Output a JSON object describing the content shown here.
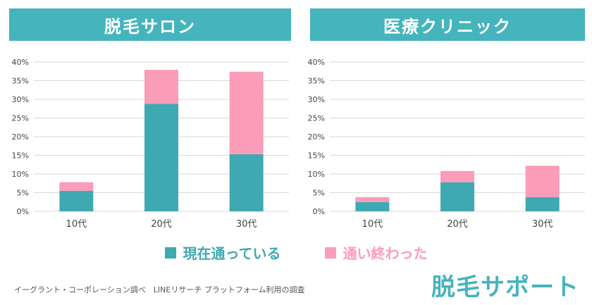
{
  "colors": {
    "header_bg": "#45b4bd",
    "current": "#3fa9b1",
    "finished": "#fb9cb9",
    "grid": "#d9d9d9",
    "axis_text": "#444444"
  },
  "legend": {
    "current_label": "現在通っている",
    "finished_label": "通い終わった"
  },
  "footer": {
    "source": "イーグラント・コーポレーション調べ　LINEリサーチ プラットフォーム利用の調査",
    "logo": "脱毛サポート"
  },
  "chart_data": [
    {
      "type": "bar",
      "stacked": true,
      "title": "脱毛サロン",
      "categories": [
        "10代",
        "20代",
        "30代"
      ],
      "series": [
        {
          "name": "現在通っている",
          "values": [
            5.5,
            28.8,
            15.3
          ]
        },
        {
          "name": "通い終わった",
          "values": [
            2.3,
            9.1,
            22.1
          ]
        }
      ],
      "ylim": [
        0,
        40
      ],
      "yticks": [
        "0%",
        "5%",
        "10%",
        "15%",
        "20%",
        "25%",
        "30%",
        "35%",
        "40%"
      ],
      "grid": true,
      "legend_position": "bottom"
    },
    {
      "type": "bar",
      "stacked": true,
      "title": "医療クリニック",
      "categories": [
        "10代",
        "20代",
        "30代"
      ],
      "series": [
        {
          "name": "現在通っている",
          "values": [
            2.5,
            7.8,
            3.8
          ]
        },
        {
          "name": "通い終わった",
          "values": [
            1.3,
            3.0,
            8.4
          ]
        }
      ],
      "ylim": [
        0,
        40
      ],
      "yticks": [
        "0%",
        "5%",
        "10%",
        "15%",
        "20%",
        "25%",
        "30%",
        "35%",
        "40%"
      ],
      "grid": true,
      "legend_position": "bottom"
    }
  ]
}
